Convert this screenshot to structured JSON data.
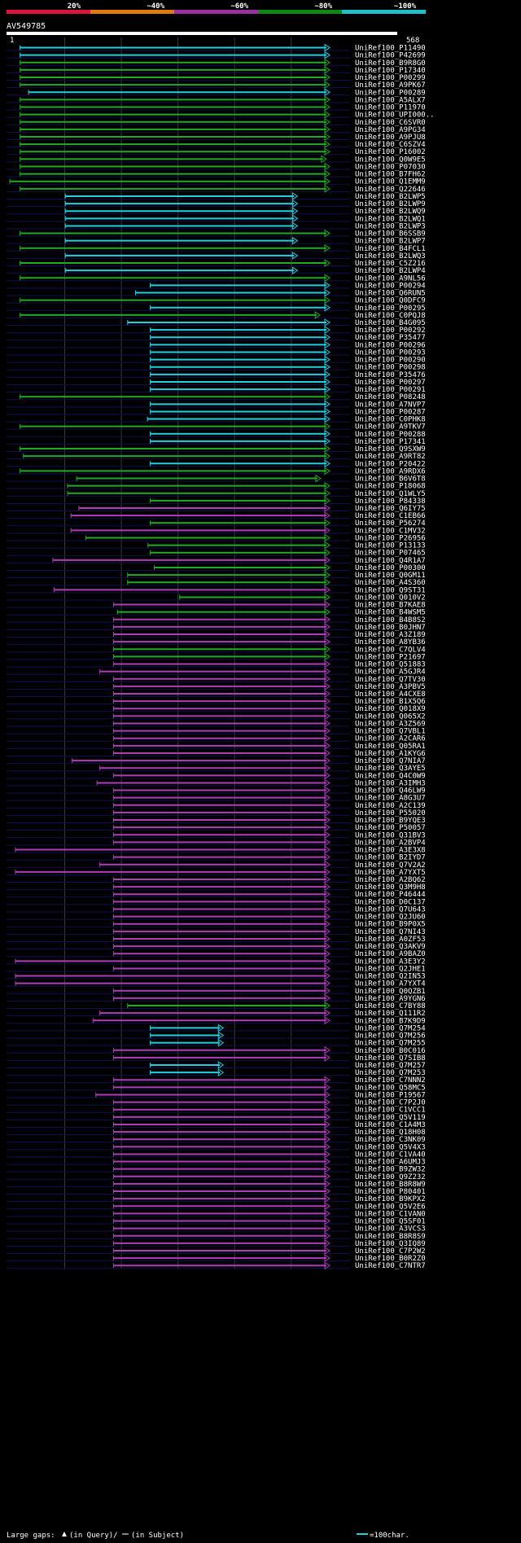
{
  "chart_data": {
    "type": "hit-alignment",
    "title": "AV549785",
    "query_start_label": "1",
    "query_end_label": "568",
    "query_length": 568,
    "identity_scale": [
      {
        "label": "20%",
        "color": "#dc143c"
      },
      {
        "label": "~40%",
        "color": "#e07b10"
      },
      {
        "label": "~60%",
        "color": "#9b30a0"
      },
      {
        "label": "~80%",
        "color": "#118811"
      },
      {
        "label": "~100%",
        "color": "#20c0c8"
      }
    ],
    "class_colors": {
      "c": "#20d0e0",
      "g": "#22aa22",
      "m": "#b03cb8"
    },
    "hits": [
      {
        "name": "UniRef100_P11490",
        "class": "c",
        "start": 21,
        "end": 568
      },
      {
        "name": "UniRef100_P42699",
        "class": "c",
        "start": 21,
        "end": 568
      },
      {
        "name": "UniRef100_B9R8G0",
        "class": "g",
        "start": 21,
        "end": 568
      },
      {
        "name": "UniRef100_P17340",
        "class": "g",
        "start": 21,
        "end": 568
      },
      {
        "name": "UniRef100_P00299",
        "class": "g",
        "start": 21,
        "end": 568
      },
      {
        "name": "UniRef100_A9PK67",
        "class": "g",
        "start": 21,
        "end": 568
      },
      {
        "name": "UniRef100_P00289",
        "class": "c",
        "start": 36,
        "end": 568
      },
      {
        "name": "UniRef100_A5ALX7",
        "class": "g",
        "start": 21,
        "end": 568
      },
      {
        "name": "UniRef100_P11970",
        "class": "g",
        "start": 21,
        "end": 568
      },
      {
        "name": "UniRef100_UPI000..",
        "class": "g",
        "start": 21,
        "end": 568
      },
      {
        "name": "UniRef100_C6SVR0",
        "class": "g",
        "start": 21,
        "end": 568
      },
      {
        "name": "UniRef100_A9PG34",
        "class": "g",
        "start": 21,
        "end": 568
      },
      {
        "name": "UniRef100_A9PJU8",
        "class": "g",
        "start": 21,
        "end": 568
      },
      {
        "name": "UniRef100_C6SZV4",
        "class": "g",
        "start": 21,
        "end": 568
      },
      {
        "name": "UniRef100_P16002",
        "class": "g",
        "start": 21,
        "end": 568
      },
      {
        "name": "UniRef100_Q0W9E5",
        "class": "g",
        "start": 21,
        "end": 562
      },
      {
        "name": "UniRef100_P07030",
        "class": "g",
        "start": 21,
        "end": 568
      },
      {
        "name": "UniRef100_B7FH62",
        "class": "g",
        "start": 21,
        "end": 568
      },
      {
        "name": "UniRef100_Q1EMM9",
        "class": "g",
        "start": 3,
        "end": 568
      },
      {
        "name": "UniRef100_Q22646",
        "class": "g",
        "start": 21,
        "end": 568
      },
      {
        "name": "UniRef100_B2LWP5",
        "class": "c",
        "start": 101,
        "end": 511
      },
      {
        "name": "UniRef100_B2LWP9",
        "class": "c",
        "start": 101,
        "end": 511
      },
      {
        "name": "UniRef100_B2LWQ9",
        "class": "c",
        "start": 101,
        "end": 511
      },
      {
        "name": "UniRef100_B2LWQ1",
        "class": "c",
        "start": 101,
        "end": 511
      },
      {
        "name": "UniRef100_B2LWP3",
        "class": "c",
        "start": 101,
        "end": 511
      },
      {
        "name": "UniRef100_B6SSB9",
        "class": "g",
        "start": 21,
        "end": 568
      },
      {
        "name": "UniRef100_B2LWP7",
        "class": "c",
        "start": 101,
        "end": 511
      },
      {
        "name": "UniRef100_B4FCL1",
        "class": "g",
        "start": 21,
        "end": 568
      },
      {
        "name": "UniRef100_B2LWQ3",
        "class": "c",
        "start": 101,
        "end": 511
      },
      {
        "name": "UniRef100_C5Z216",
        "class": "g",
        "start": 21,
        "end": 568
      },
      {
        "name": "UniRef100_B2LWP4",
        "class": "c",
        "start": 101,
        "end": 511
      },
      {
        "name": "UniRef100_A9NL56",
        "class": "g",
        "start": 21,
        "end": 568
      },
      {
        "name": "UniRef100_P00294",
        "class": "c",
        "start": 251,
        "end": 568
      },
      {
        "name": "UniRef100_Q6RUN5",
        "class": "c",
        "start": 225,
        "end": 568
      },
      {
        "name": "UniRef100_Q0DFC9",
        "class": "g",
        "start": 21,
        "end": 568
      },
      {
        "name": "UniRef100_P00295",
        "class": "c",
        "start": 251,
        "end": 568
      },
      {
        "name": "UniRef100_C0PQJ8",
        "class": "g",
        "start": 21,
        "end": 551
      },
      {
        "name": "UniRef100_B4G095",
        "class": "c",
        "start": 211,
        "end": 568
      },
      {
        "name": "UniRef100_P00292",
        "class": "c",
        "start": 251,
        "end": 568
      },
      {
        "name": "UniRef100_P35477",
        "class": "c",
        "start": 251,
        "end": 568
      },
      {
        "name": "UniRef100_P00296",
        "class": "c",
        "start": 251,
        "end": 568
      },
      {
        "name": "UniRef100_P00293",
        "class": "c",
        "start": 251,
        "end": 568
      },
      {
        "name": "UniRef100_P00290",
        "class": "c",
        "start": 251,
        "end": 568
      },
      {
        "name": "UniRef100_P00298",
        "class": "c",
        "start": 251,
        "end": 568
      },
      {
        "name": "UniRef100_P35476",
        "class": "c",
        "start": 251,
        "end": 568
      },
      {
        "name": "UniRef100_P00297",
        "class": "c",
        "start": 251,
        "end": 568
      },
      {
        "name": "UniRef100_P00291",
        "class": "c",
        "start": 251,
        "end": 568
      },
      {
        "name": "UniRef100_P08248",
        "class": "g",
        "start": 21,
        "end": 568
      },
      {
        "name": "UniRef100_A7NVP7",
        "class": "c",
        "start": 251,
        "end": 568
      },
      {
        "name": "UniRef100_P00287",
        "class": "c",
        "start": 251,
        "end": 568
      },
      {
        "name": "UniRef100_C0PHK8",
        "class": "c",
        "start": 246,
        "end": 568
      },
      {
        "name": "UniRef100_A9TKV7",
        "class": "g",
        "start": 21,
        "end": 568
      },
      {
        "name": "UniRef100_P00288",
        "class": "c",
        "start": 251,
        "end": 568
      },
      {
        "name": "UniRef100_P17341",
        "class": "c",
        "start": 251,
        "end": 568
      },
      {
        "name": "UniRef100_Q9SXW9",
        "class": "g",
        "start": 21,
        "end": 568
      },
      {
        "name": "UniRef100_A9RT82",
        "class": "g",
        "start": 27,
        "end": 568
      },
      {
        "name": "UniRef100_P20422",
        "class": "c",
        "start": 251,
        "end": 568
      },
      {
        "name": "UniRef100_A9RDX6",
        "class": "g",
        "start": 21,
        "end": 568
      },
      {
        "name": "UniRef100_B6V6T8",
        "class": "g",
        "start": 121,
        "end": 552
      },
      {
        "name": "UniRef100_P18068",
        "class": "g",
        "start": 105,
        "end": 568
      },
      {
        "name": "UniRef100_Q1WLY5",
        "class": "g",
        "start": 105,
        "end": 568
      },
      {
        "name": "UniRef100_P84338",
        "class": "g",
        "start": 251,
        "end": 568
      },
      {
        "name": "UniRef100_Q6IY75",
        "class": "m",
        "start": 125,
        "end": 568
      },
      {
        "name": "UniRef100_C1EB66",
        "class": "m",
        "start": 111,
        "end": 568
      },
      {
        "name": "UniRef100_P56274",
        "class": "g",
        "start": 251,
        "end": 568
      },
      {
        "name": "UniRef100_C1MV32",
        "class": "m",
        "start": 111,
        "end": 568
      },
      {
        "name": "UniRef100_P26956",
        "class": "g",
        "start": 137,
        "end": 568
      },
      {
        "name": "UniRef100_P13133",
        "class": "g",
        "start": 247,
        "end": 568
      },
      {
        "name": "UniRef100_P07465",
        "class": "g",
        "start": 251,
        "end": 568
      },
      {
        "name": "UniRef100_Q4R1A7",
        "class": "m",
        "start": 79,
        "end": 568
      },
      {
        "name": "UniRef100_P00300",
        "class": "g",
        "start": 258,
        "end": 568
      },
      {
        "name": "UniRef100_Q0GM11",
        "class": "g",
        "start": 211,
        "end": 568
      },
      {
        "name": "UniRef100_A4S360",
        "class": "g",
        "start": 211,
        "end": 568
      },
      {
        "name": "UniRef100_Q9ST31",
        "class": "m",
        "start": 81,
        "end": 568
      },
      {
        "name": "UniRef100_Q010V2",
        "class": "g",
        "start": 303,
        "end": 568
      },
      {
        "name": "UniRef100_B7KAE8",
        "class": "m",
        "start": 186,
        "end": 568
      },
      {
        "name": "UniRef100_B4WSM5",
        "class": "g",
        "start": 193,
        "end": 568
      },
      {
        "name": "UniRef100_B4B8S2",
        "class": "m",
        "start": 186,
        "end": 568
      },
      {
        "name": "UniRef100_B0JHN7",
        "class": "m",
        "start": 186,
        "end": 568
      },
      {
        "name": "UniRef100_A3Z189",
        "class": "m",
        "start": 186,
        "end": 568
      },
      {
        "name": "UniRef100_A8YB36",
        "class": "m",
        "start": 186,
        "end": 568
      },
      {
        "name": "UniRef100_C7QLV4",
        "class": "g",
        "start": 186,
        "end": 568
      },
      {
        "name": "UniRef100_P21697",
        "class": "g",
        "start": 186,
        "end": 568
      },
      {
        "name": "UniRef100_Q51883",
        "class": "m",
        "start": 186,
        "end": 568
      },
      {
        "name": "UniRef100_A5GJR4",
        "class": "m",
        "start": 162,
        "end": 568
      },
      {
        "name": "UniRef100_Q7TV30",
        "class": "m",
        "start": 186,
        "end": 568
      },
      {
        "name": "UniRef100_A3PBV5",
        "class": "m",
        "start": 186,
        "end": 568
      },
      {
        "name": "UniRef100_A4CXE8",
        "class": "m",
        "start": 186,
        "end": 568
      },
      {
        "name": "UniRef100_B1X5Q6",
        "class": "m",
        "start": 186,
        "end": 568
      },
      {
        "name": "UniRef100_Q018X9",
        "class": "m",
        "start": 186,
        "end": 568
      },
      {
        "name": "UniRef100_Q065X2",
        "class": "m",
        "start": 186,
        "end": 568
      },
      {
        "name": "UniRef100_A3Z569",
        "class": "m",
        "start": 186,
        "end": 568
      },
      {
        "name": "UniRef100_Q7VBL1",
        "class": "m",
        "start": 186,
        "end": 568
      },
      {
        "name": "UniRef100_A2CAR6",
        "class": "m",
        "start": 186,
        "end": 568
      },
      {
        "name": "UniRef100_Q05RA1",
        "class": "m",
        "start": 186,
        "end": 568
      },
      {
        "name": "UniRef100_A1KYG6",
        "class": "m",
        "start": 186,
        "end": 568
      },
      {
        "name": "UniRef100_Q7NIA7",
        "class": "m",
        "start": 113,
        "end": 568
      },
      {
        "name": "UniRef100_Q3AYE5",
        "class": "m",
        "start": 162,
        "end": 568
      },
      {
        "name": "UniRef100_Q4C0W9",
        "class": "m",
        "start": 186,
        "end": 568
      },
      {
        "name": "UniRef100_A3IMH3",
        "class": "m",
        "start": 157,
        "end": 568
      },
      {
        "name": "UniRef100_Q46LW9",
        "class": "m",
        "start": 186,
        "end": 568
      },
      {
        "name": "UniRef100_A8G3U7",
        "class": "m",
        "start": 186,
        "end": 568
      },
      {
        "name": "UniRef100_A2C139",
        "class": "m",
        "start": 186,
        "end": 568
      },
      {
        "name": "UniRef100_P55020",
        "class": "m",
        "start": 186,
        "end": 568
      },
      {
        "name": "UniRef100_B9YQE3",
        "class": "m",
        "start": 186,
        "end": 568
      },
      {
        "name": "UniRef100_P50057",
        "class": "m",
        "start": 186,
        "end": 568
      },
      {
        "name": "UniRef100_Q31BV3",
        "class": "m",
        "start": 186,
        "end": 568
      },
      {
        "name": "UniRef100_A2BVP4",
        "class": "m",
        "start": 186,
        "end": 568
      },
      {
        "name": "UniRef100_A3E3X8",
        "class": "m",
        "start": 13,
        "end": 568
      },
      {
        "name": "UniRef100_B2IYD7",
        "class": "m",
        "start": 186,
        "end": 568
      },
      {
        "name": "UniRef100_Q7V2A2",
        "class": "m",
        "start": 162,
        "end": 568
      },
      {
        "name": "UniRef100_A7YXT5",
        "class": "m",
        "start": 13,
        "end": 568
      },
      {
        "name": "UniRef100_A2BQ62",
        "class": "m",
        "start": 186,
        "end": 568
      },
      {
        "name": "UniRef100_Q3M9H8",
        "class": "m",
        "start": 186,
        "end": 568
      },
      {
        "name": "UniRef100_P46444",
        "class": "m",
        "start": 186,
        "end": 568
      },
      {
        "name": "UniRef100_D0C137",
        "class": "m",
        "start": 186,
        "end": 568
      },
      {
        "name": "UniRef100_Q7U643",
        "class": "m",
        "start": 186,
        "end": 568
      },
      {
        "name": "UniRef100_Q2JU60",
        "class": "m",
        "start": 186,
        "end": 568
      },
      {
        "name": "UniRef100_B9P0X5",
        "class": "m",
        "start": 186,
        "end": 568
      },
      {
        "name": "UniRef100_Q7NI43",
        "class": "m",
        "start": 186,
        "end": 568
      },
      {
        "name": "UniRef100_A0ZF53",
        "class": "m",
        "start": 186,
        "end": 568
      },
      {
        "name": "UniRef100_Q3AKV9",
        "class": "m",
        "start": 186,
        "end": 568
      },
      {
        "name": "UniRef100_A9BAZ0",
        "class": "m",
        "start": 186,
        "end": 568
      },
      {
        "name": "UniRef100_A3E3Y2",
        "class": "m",
        "start": 13,
        "end": 568
      },
      {
        "name": "UniRef100_Q2JHE1",
        "class": "m",
        "start": 186,
        "end": 568
      },
      {
        "name": "UniRef100_Q2IN53",
        "class": "m",
        "start": 13,
        "end": 568
      },
      {
        "name": "UniRef100_A7YXT4",
        "class": "m",
        "start": 13,
        "end": 568
      },
      {
        "name": "UniRef100_Q0QZB1",
        "class": "m",
        "start": 186,
        "end": 568
      },
      {
        "name": "UniRef100_A9YGN6",
        "class": "m",
        "start": 186,
        "end": 568
      },
      {
        "name": "UniRef100_C7BY88",
        "class": "g",
        "start": 211,
        "end": 568
      },
      {
        "name": "UniRef100_Q111R2",
        "class": "m",
        "start": 162,
        "end": 568
      },
      {
        "name": "UniRef100_B7K9D9",
        "class": "m",
        "start": 150,
        "end": 568
      },
      {
        "name": "UniRef100_Q7M254",
        "class": "c",
        "start": 251,
        "end": 380
      },
      {
        "name": "UniRef100_Q7M256",
        "class": "c",
        "start": 251,
        "end": 380
      },
      {
        "name": "UniRef100_Q7M255",
        "class": "c",
        "start": 251,
        "end": 380
      },
      {
        "name": "UniRef100_B0C016",
        "class": "m",
        "start": 186,
        "end": 568
      },
      {
        "name": "UniRef100_Q7SIB8",
        "class": "m",
        "start": 186,
        "end": 568
      },
      {
        "name": "UniRef100_Q7M257",
        "class": "c",
        "start": 251,
        "end": 380
      },
      {
        "name": "UniRef100_Q7M253",
        "class": "c",
        "start": 251,
        "end": 380
      },
      {
        "name": "UniRef100_C7NNN2",
        "class": "m",
        "start": 186,
        "end": 568
      },
      {
        "name": "UniRef100_Q58MC5",
        "class": "m",
        "start": 186,
        "end": 568
      },
      {
        "name": "UniRef100_P19567",
        "class": "m",
        "start": 155,
        "end": 568
      },
      {
        "name": "UniRef100_C7P2J0",
        "class": "m",
        "start": 186,
        "end": 568
      },
      {
        "name": "UniRef100_C1VCC1",
        "class": "m",
        "start": 186,
        "end": 568
      },
      {
        "name": "UniRef100_Q5V119",
        "class": "m",
        "start": 186,
        "end": 568
      },
      {
        "name": "UniRef100_C1A4M3",
        "class": "m",
        "start": 186,
        "end": 568
      },
      {
        "name": "UniRef100_Q18H08",
        "class": "m",
        "start": 186,
        "end": 568
      },
      {
        "name": "UniRef100_C3NK09",
        "class": "m",
        "start": 186,
        "end": 568
      },
      {
        "name": "UniRef100_Q5V4X3",
        "class": "m",
        "start": 186,
        "end": 568
      },
      {
        "name": "UniRef100_C1VA40",
        "class": "m",
        "start": 186,
        "end": 568
      },
      {
        "name": "UniRef100_A6UMJ3",
        "class": "m",
        "start": 186,
        "end": 568
      },
      {
        "name": "UniRef100_B9ZW32",
        "class": "m",
        "start": 186,
        "end": 568
      },
      {
        "name": "UniRef100_Q9Z232",
        "class": "m",
        "start": 186,
        "end": 568
      },
      {
        "name": "UniRef100_B8R8W9",
        "class": "m",
        "start": 186,
        "end": 568
      },
      {
        "name": "UniRef100_P80401",
        "class": "m",
        "start": 186,
        "end": 568
      },
      {
        "name": "UniRef100_B9KPX2",
        "class": "m",
        "start": 186,
        "end": 568
      },
      {
        "name": "UniRef100_Q5V2E6",
        "class": "m",
        "start": 186,
        "end": 568
      },
      {
        "name": "UniRef100_C1VAN0",
        "class": "m",
        "start": 186,
        "end": 568
      },
      {
        "name": "UniRef100_Q5SF01",
        "class": "m",
        "start": 186,
        "end": 568
      },
      {
        "name": "UniRef100_A3VCS3",
        "class": "m",
        "start": 186,
        "end": 568
      },
      {
        "name": "UniRef100_B8R8S9",
        "class": "m",
        "start": 186,
        "end": 568
      },
      {
        "name": "UniRef100_Q3IQ89",
        "class": "m",
        "start": 186,
        "end": 568
      },
      {
        "name": "UniRef100_C7P2W2",
        "class": "m",
        "start": 186,
        "end": 568
      },
      {
        "name": "UniRef100_B0R2Z0",
        "class": "m",
        "start": 186,
        "end": 568
      },
      {
        "name": "UniRef100_C7NTR7",
        "class": "m",
        "start": 186,
        "end": 568
      }
    ],
    "legend": {
      "gaps_label": "Large gaps:",
      "in_query": "(in Query)/",
      "in_subject": "(in Subject)",
      "scale_label": "=100char."
    }
  }
}
